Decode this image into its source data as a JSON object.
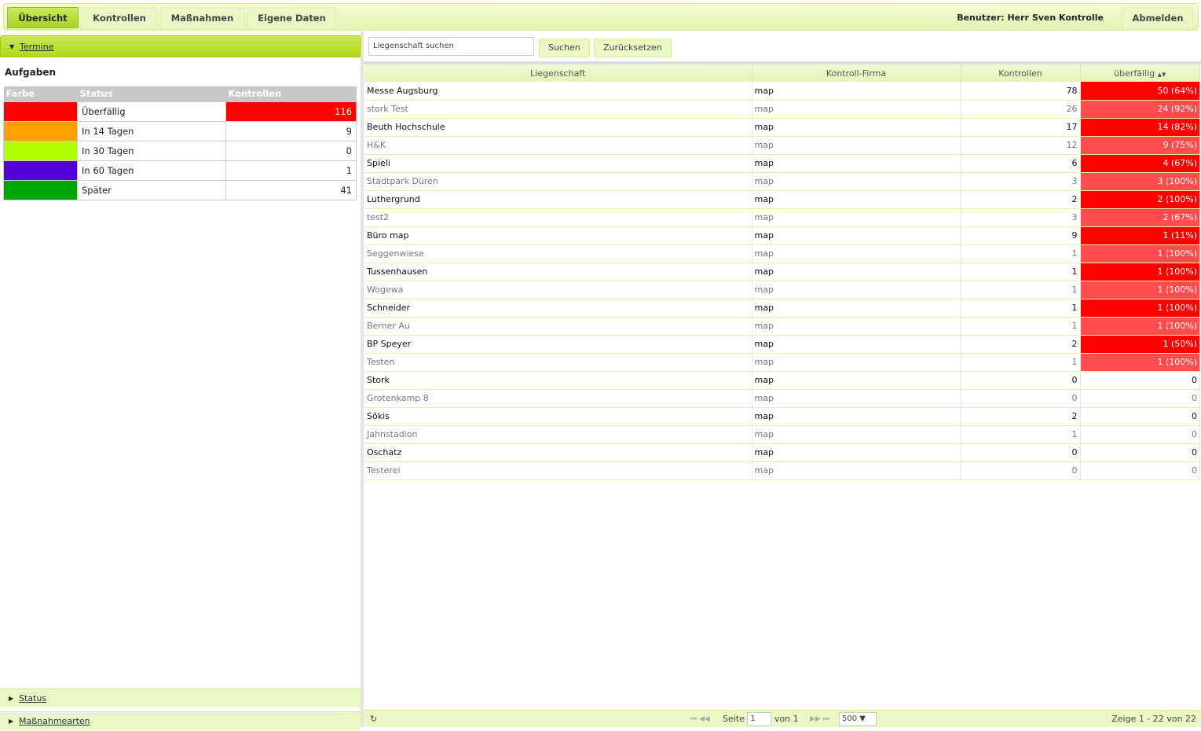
{
  "nav": {
    "tabs": [
      {
        "label": "Übersicht",
        "active": true
      },
      {
        "label": "Kontrollen"
      },
      {
        "label": "Maßnahmen"
      },
      {
        "label": "Eigene Daten"
      }
    ],
    "user": "Benutzer: Herr Sven Kontrolle",
    "logout": "Abmelden"
  },
  "left": {
    "termine": "Termine",
    "aufgaben": "Aufgaben",
    "headers": [
      "Farbe",
      "Status",
      "Kontrollen"
    ],
    "rows": [
      {
        "color": "#ff0000",
        "status": "Überfällig",
        "count": "116",
        "highlight": true
      },
      {
        "color": "#ff9f00",
        "status": "In 14 Tagen",
        "count": "9"
      },
      {
        "color": "#b0ff00",
        "status": "In 30 Tagen",
        "count": "0"
      },
      {
        "color": "#5500d8",
        "status": "In 60 Tagen",
        "count": "1"
      },
      {
        "color": "#00a800",
        "status": "Später",
        "count": "41"
      }
    ],
    "status": "Status",
    "massnahmearten": "Maßnahmearten"
  },
  "search": {
    "placeholder": "Liegenschaft suchen",
    "search": "Suchen",
    "reset": "Zurücksetzen"
  },
  "grid": {
    "headers": [
      "Liegenschaft",
      "Kontroll-Firma",
      "Kontrollen",
      "überfällig"
    ],
    "sort_icon": "sort-icon",
    "rows": [
      [
        "Messe Augsburg",
        "map",
        "78",
        "50 (64%)"
      ],
      [
        "stork Test",
        "map",
        "26",
        "24 (92%)"
      ],
      [
        "Beuth Hochschule",
        "map",
        "17",
        "14 (82%)"
      ],
      [
        "H&K",
        "map",
        "12",
        "9 (75%)"
      ],
      [
        "Spieli",
        "map",
        "6",
        "4 (67%)"
      ],
      [
        "Stadtpark Düren",
        "map",
        "3",
        "3 (100%)"
      ],
      [
        "Luthergrund",
        "map",
        "2",
        "2 (100%)"
      ],
      [
        "test2",
        "map",
        "3",
        "2 (67%)"
      ],
      [
        "Büro map",
        "map",
        "9",
        "1 (11%)"
      ],
      [
        "Seggenwiese",
        "map",
        "1",
        "1 (100%)"
      ],
      [
        "Tussenhausen",
        "map",
        "1",
        "1 (100%)"
      ],
      [
        "Wogewa",
        "map",
        "1",
        "1 (100%)"
      ],
      [
        "Schneider",
        "map",
        "1",
        "1 (100%)"
      ],
      [
        "Berner Au",
        "map",
        "1",
        "1 (100%)"
      ],
      [
        "BP Speyer",
        "map",
        "2",
        "1 (50%)"
      ],
      [
        "Testen",
        "map",
        "1",
        "1 (100%)"
      ],
      [
        "Stork",
        "map",
        "0",
        "0"
      ],
      [
        "Grotenkamp 8",
        "map",
        "0",
        "0"
      ],
      [
        "Sökis",
        "map",
        "2",
        "0"
      ],
      [
        "Jahnstadion",
        "map",
        "1",
        "0"
      ],
      [
        "Oschatz",
        "map",
        "0",
        "0"
      ],
      [
        "Testerei",
        "map",
        "0",
        "0"
      ]
    ]
  },
  "pager": {
    "seite": "Seite",
    "page": "1",
    "von": "von 1",
    "per_page": "500",
    "summary": "Zeige 1 - 22 von 22"
  },
  "colors": {
    "overdue_odd": "#ff0000",
    "overdue_even": "#ff4c4c"
  }
}
